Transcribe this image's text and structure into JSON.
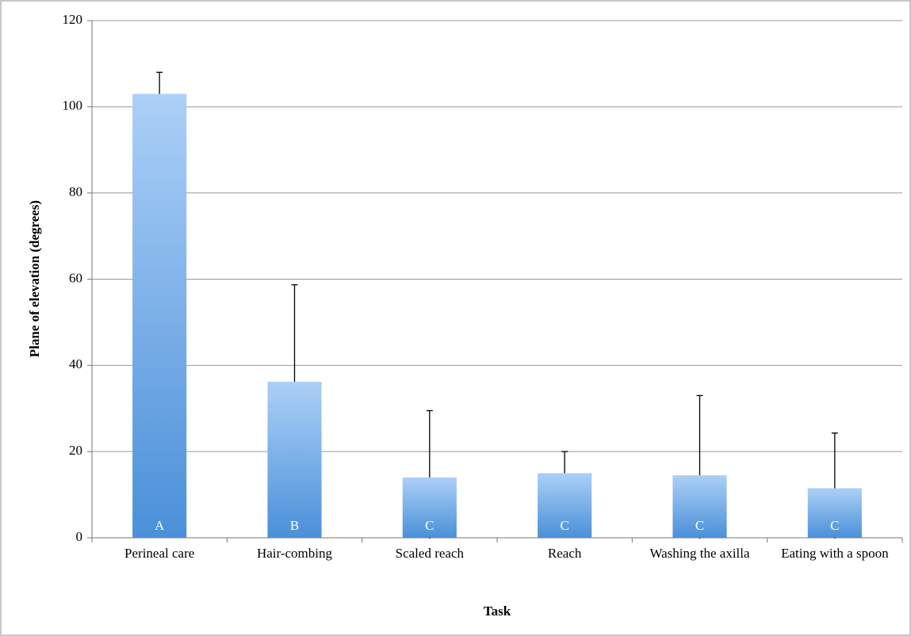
{
  "chart_data": {
    "type": "bar",
    "x_label": "Task",
    "y_label": "Plane of elevation (degrees)",
    "categories": [
      "Perineal care",
      "Hair-combing",
      "Scaled reach",
      "Reach",
      "Washing the axilla",
      "Eating with a spoon"
    ],
    "values": [
      103,
      36.2,
      14,
      15,
      14.5,
      11.5
    ],
    "errors": [
      5,
      22.5,
      15.5,
      5,
      18.5,
      12.8
    ],
    "bar_labels": [
      "A",
      "B",
      "C",
      "C",
      "C",
      "C"
    ],
    "color": "#4a90d9",
    "ylim": [
      0,
      120
    ],
    "yticks": [
      0,
      20,
      40,
      60,
      80,
      100,
      120
    ],
    "grid": true
  }
}
